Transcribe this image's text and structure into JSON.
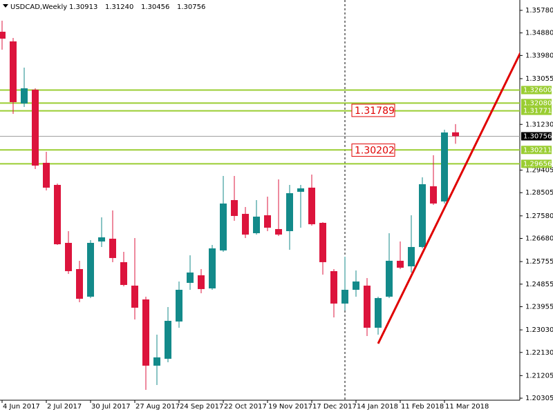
{
  "chart_data": {
    "type": "candlestick",
    "title": "USDCAD,Weekly",
    "header_ohlc": [
      "1.30913",
      "1.31240",
      "1.30456",
      "1.30756"
    ],
    "categories": [
      "4 Jun 2017",
      null,
      null,
      null,
      "2 Jul 2017",
      null,
      null,
      null,
      "30 Jul 2017",
      null,
      null,
      null,
      "27 Aug 2017",
      null,
      null,
      null,
      "24 Sep 2017",
      null,
      null,
      null,
      "22 Oct 2017",
      null,
      null,
      null,
      "19 Nov 2017",
      null,
      null,
      null,
      "17 Dec 2017",
      null,
      null,
      null,
      "14 Jan 2018",
      null,
      null,
      null,
      "11 Feb 2018",
      null,
      null,
      null,
      "11 Mar 2018",
      null
    ],
    "open": [
      1.34927,
      1.34541,
      1.32063,
      1.32614,
      1.29696,
      1.28815,
      1.26502,
      1.25456,
      1.24355,
      1.26557,
      1.26668,
      1.25732,
      1.24796,
      1.24245,
      1.21602,
      1.21877,
      1.23364,
      1.24906,
      1.25208,
      1.24685,
      1.262,
      1.28209,
      1.27659,
      1.26888,
      1.27604,
      1.27053,
      1.2697,
      1.2854,
      1.28705,
      1.27301,
      1.25374,
      1.2408,
      1.2463,
      1.24796,
      1.23116,
      1.24355,
      1.25787,
      1.25566,
      1.26337,
      1.2876,
      1.28154,
      1.30913
    ],
    "high": [
      1.35367,
      1.34679,
      1.33495,
      1.32669,
      1.30136,
      1.2887,
      1.2697,
      1.25787,
      1.26613,
      1.27521,
      1.27796,
      1.26144,
      1.26695,
      1.24355,
      1.22841,
      1.23942,
      1.24961,
      1.26007,
      1.25456,
      1.2642,
      1.29173,
      1.29173,
      1.27934,
      1.28209,
      1.28347,
      1.29035,
      1.28815,
      1.28815,
      1.29228,
      1.27328,
      1.25456,
      1.25952,
      1.25401,
      1.25098,
      1.24355,
      1.26888,
      1.26557,
      1.27604,
      1.29118,
      1.29999,
      1.31017,
      1.3124
    ],
    "low": [
      1.34211,
      1.3165,
      1.31926,
      1.29448,
      1.28595,
      1.2642,
      1.25264,
      1.24135,
      1.243,
      1.26337,
      1.25732,
      1.24768,
      1.23447,
      1.20638,
      1.20831,
      1.2174,
      1.23116,
      1.2463,
      1.24493,
      1.2463,
      1.26144,
      1.27383,
      1.26695,
      1.26833,
      1.2697,
      1.26778,
      1.26227,
      1.27108,
      1.27191,
      1.25236,
      1.23529,
      1.23804,
      1.24355,
      1.22786,
      1.22841,
      1.243,
      1.25456,
      1.25319,
      1.26282,
      1.28017,
      1.28072,
      1.30456
    ],
    "close": [
      1.34651,
      1.32119,
      1.32669,
      1.29586,
      1.28705,
      1.26447,
      1.25374,
      1.24272,
      1.26502,
      1.26723,
      1.25897,
      1.24823,
      1.23915,
      1.21602,
      1.21932,
      1.23391,
      1.2463,
      1.25319,
      1.24658,
      1.26282,
      1.28072,
      1.27576,
      1.26833,
      1.27549,
      1.27108,
      1.26833,
      1.28485,
      1.28677,
      1.27246,
      1.25732,
      1.2408,
      1.2463,
      1.24961,
      1.23116,
      1.243,
      1.25787,
      1.25511,
      1.26337,
      1.28842,
      1.28072,
      1.30907,
      1.30756
    ],
    "up_color": "#138a8a",
    "down_color": "#dc143c",
    "ylim": [
      1.20224,
      1.36193
    ],
    "yticks": [
      {
        "value": 1.3578,
        "label": "1.35780"
      },
      {
        "value": 1.3488,
        "label": "1.34880"
      },
      {
        "value": 1.3398,
        "label": "1.33980"
      },
      {
        "value": 1.33055,
        "label": "1.33055"
      },
      {
        "value": 1.3123,
        "label": "1.31230"
      },
      1.29405,
      1.28505,
      {
        "value": 1.2758,
        "label": "1.27580"
      },
      {
        "value": 1.2668,
        "label": "1.26680"
      },
      1.25755,
      1.24855,
      1.23955,
      {
        "value": 1.2303,
        "label": "1.23030"
      },
      {
        "value": 1.2213,
        "label": "1.22130"
      },
      1.21205,
      1.20305
    ],
    "levels": [
      {
        "value": 1.326,
        "label": "1.32600"
      },
      {
        "value": 1.3208,
        "label": "1.32080"
      },
      1.31771,
      1.30211,
      1.29656
    ],
    "level_color": "#9acd32",
    "current_price": 1.30756,
    "price_labels": [
      1.31789,
      1.30202
    ],
    "price_label_color": "#e00000",
    "trendline": {
      "start": [
        34,
        1.22483
      ],
      "end": [
        47,
        1.34211
      ],
      "color": "#e00000"
    },
    "vline_index": 31
  }
}
